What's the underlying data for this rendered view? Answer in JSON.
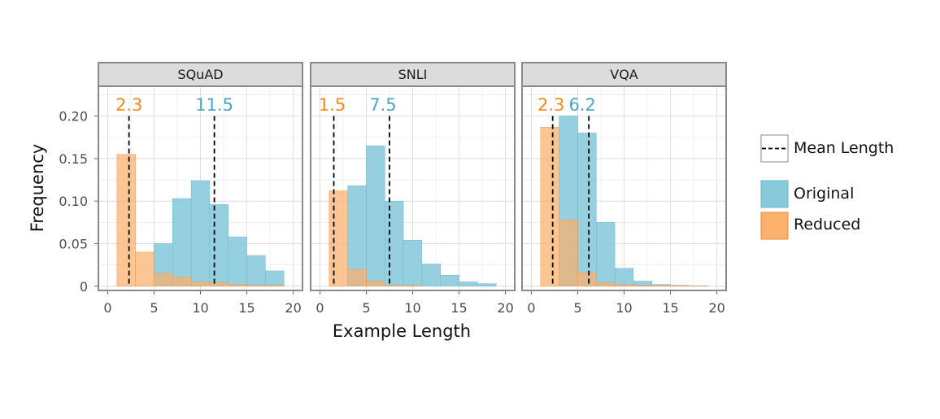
{
  "chart_data": {
    "type": "bar",
    "xlabel": "Example Length",
    "ylabel": "Frequency",
    "xlim": [
      -1,
      21
    ],
    "ylim": [
      -0.005,
      0.235
    ],
    "x_ticks": [
      "0",
      "5",
      "10",
      "15",
      "20"
    ],
    "y_ticks": [
      {
        "label": "0",
        "value": 0
      },
      {
        "label": "0.05",
        "value": 0.05
      },
      {
        "label": "0.10",
        "value": 0.1
      },
      {
        "label": "0.15",
        "value": 0.15
      },
      {
        "label": "0.20",
        "value": 0.2
      }
    ],
    "bin_width": 2,
    "grid": true,
    "legend": {
      "placement": "right",
      "mean_label": "Mean Length",
      "series": [
        {
          "name": "Original",
          "color": "#88c9dc"
        },
        {
          "name": "Reduced",
          "color": "#fbb06b"
        }
      ]
    },
    "panels": [
      {
        "title": "SQuAD",
        "original": {
          "bin_starts": [
            5,
            7,
            9,
            11,
            13,
            15,
            17
          ],
          "values": [
            0.05,
            0.103,
            0.124,
            0.096,
            0.058,
            0.036,
            0.018
          ]
        },
        "reduced": {
          "bin_starts": [
            1,
            3,
            5,
            7,
            9,
            11,
            13,
            15,
            17
          ],
          "values": [
            0.155,
            0.04,
            0.015,
            0.011,
            0.005,
            0.004,
            0.002,
            0.001,
            0.001
          ]
        },
        "means": [
          {
            "value": 2.3,
            "label": "2.3",
            "series": "Reduced",
            "color": "#f58a1f"
          },
          {
            "value": 11.5,
            "label": "11.5",
            "series": "Original",
            "color": "#4aa6c5"
          }
        ]
      },
      {
        "title": "SNLI",
        "original": {
          "bin_starts": [
            3,
            5,
            7,
            9,
            11,
            13,
            15,
            17
          ],
          "values": [
            0.118,
            0.165,
            0.1,
            0.054,
            0.026,
            0.013,
            0.005,
            0.003
          ]
        },
        "reduced": {
          "bin_starts": [
            1,
            3,
            5,
            7,
            9
          ],
          "values": [
            0.112,
            0.02,
            0.006,
            0.001,
            0.0005
          ]
        },
        "means": [
          {
            "value": 1.5,
            "label": "1.5",
            "series": "Reduced",
            "color": "#f58a1f"
          },
          {
            "value": 7.5,
            "label": "7.5",
            "series": "Original",
            "color": "#4aa6c5"
          }
        ]
      },
      {
        "title": "VQA",
        "original": {
          "bin_starts": [
            3,
            5,
            7,
            9,
            11,
            13,
            15,
            17
          ],
          "values": [
            0.2,
            0.18,
            0.075,
            0.021,
            0.006,
            0.002,
            0.001,
            0.0005
          ]
        },
        "reduced": {
          "bin_starts": [
            1,
            3,
            5,
            7,
            9,
            11,
            13,
            15,
            17
          ],
          "values": [
            0.187,
            0.078,
            0.016,
            0.004,
            0.002,
            0.001,
            0.0008,
            0.0005,
            0.0002
          ]
        },
        "means": [
          {
            "value": 2.3,
            "label": "2.3",
            "series": "Reduced",
            "color": "#f58a1f"
          },
          {
            "value": 6.2,
            "label": "6.2",
            "series": "Original",
            "color": "#4aa6c5"
          }
        ]
      }
    ]
  }
}
